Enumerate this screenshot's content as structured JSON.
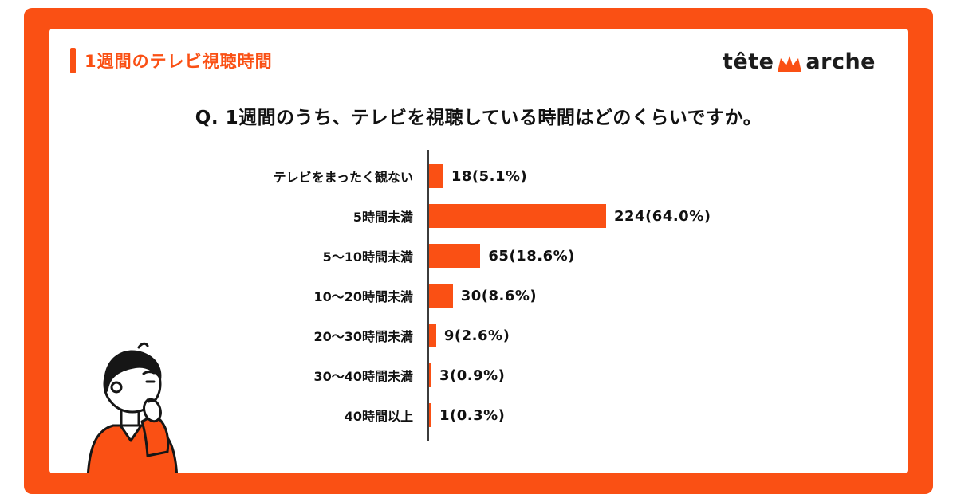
{
  "colors": {
    "accent": "#FA5014",
    "text": "#111111",
    "axis": "#3C3C3C"
  },
  "header": {
    "title": "1週間のテレビ視聴時間",
    "logo": {
      "part1": "tête",
      "icon": "crown-m-icon",
      "part2": "arche"
    }
  },
  "chart_data": {
    "type": "bar",
    "orientation": "horizontal",
    "title": "Q. 1週間のうち、テレビを視聴している時間はどのくらいですか。",
    "xlabel": "",
    "ylabel": "",
    "xlim": [
      0,
      240
    ],
    "grid": false,
    "legend": false,
    "bar_color": "#FA5014",
    "categories": [
      "テレビをまったく観ない",
      "5時間未満",
      "5〜10時間未満",
      "10〜20時間未満",
      "20〜30時間未満",
      "30〜40時間未満",
      "40時間以上"
    ],
    "values": [
      18,
      224,
      65,
      30,
      9,
      3,
      1
    ],
    "percentages": [
      5.1,
      64.0,
      18.6,
      8.6,
      2.6,
      0.9,
      0.3
    ],
    "value_labels": [
      "18(5.1%)",
      "224(64.0%)",
      "65(18.6%)",
      "30(8.6%)",
      "9(2.6%)",
      "3(0.9%)",
      "1(0.3%)"
    ]
  }
}
